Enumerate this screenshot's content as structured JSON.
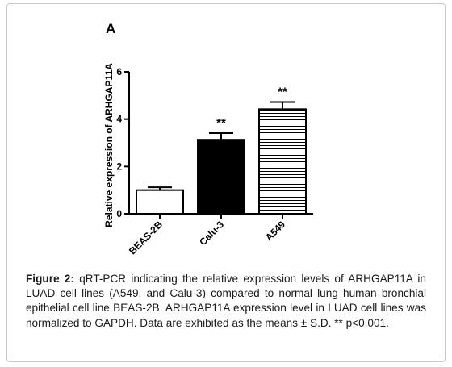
{
  "panel_label": "A",
  "figure": {
    "label": "Figure 2:",
    "caption": "qRT-PCR indicating the relative expression levels of ARHGAP11A in LUAD cell lines (A549, and Calu-3) compared to normal lung human bronchial epithelial cell line BEAS-2B. ARHGAP11A expression level in LUAD cell lines was normalized to GAPDH. Data are exhibited as the means ± S.D. ** p<0.001."
  },
  "chart_data": {
    "type": "bar",
    "title": "",
    "xlabel": "",
    "ylabel": "Relative expression of ARHGAP11A",
    "ylim": [
      0,
      6
    ],
    "yticks": [
      "0",
      "2",
      "4",
      "6"
    ],
    "categories": [
      "BEAS-2B",
      "Calu-3",
      "A549"
    ],
    "values": [
      1.0,
      3.13,
      4.42
    ],
    "errors": [
      0.12,
      0.28,
      0.3
    ],
    "annotations": [
      "",
      "**",
      "**"
    ],
    "bar_fills": [
      "white",
      "black",
      "horizontal-lines"
    ]
  }
}
